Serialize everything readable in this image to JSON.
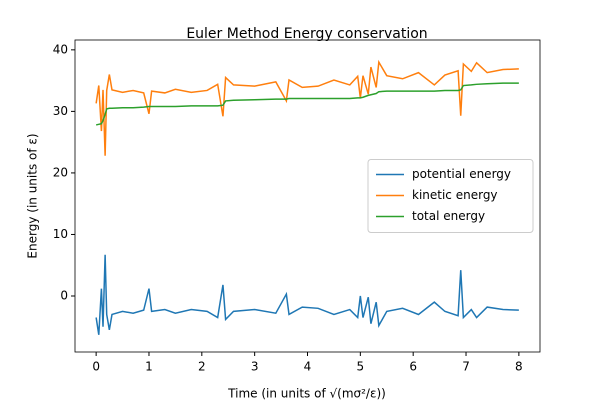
{
  "chart_data": {
    "type": "line",
    "title": "Euler Method Energy conservation",
    "x_label": "Time (in units of √(mσ²/ε))",
    "y_label": "Energy (in units of ε)",
    "x": [
      0,
      0.05,
      0.1,
      0.13,
      0.17,
      0.2,
      0.25,
      0.3,
      0.5,
      0.7,
      0.9,
      1.0,
      1.05,
      1.3,
      1.5,
      1.8,
      2.1,
      2.3,
      2.4,
      2.45,
      2.6,
      3.0,
      3.4,
      3.6,
      3.65,
      3.9,
      4.2,
      4.5,
      4.8,
      4.95,
      5.0,
      5.05,
      5.15,
      5.2,
      5.3,
      5.35,
      5.5,
      5.8,
      6.1,
      6.4,
      6.6,
      6.85,
      6.9,
      6.95,
      7.1,
      7.2,
      7.4,
      7.7,
      8.0
    ],
    "series": [
      {
        "name": "potential energy",
        "color": "#1f77b4",
        "values": [
          -3.5,
          -6.3,
          1.2,
          -5,
          6.7,
          -3,
          -5.5,
          -3,
          -2.5,
          -2.8,
          -2.3,
          1.2,
          -2.5,
          -2.2,
          -2.8,
          -2.2,
          -2.5,
          -3.5,
          1.8,
          -3.8,
          -2.5,
          -2.2,
          -2.8,
          0.3,
          -3,
          -1.8,
          -2,
          -3,
          -2.2,
          -3.5,
          0,
          -3.5,
          -0.2,
          -4.5,
          -1,
          -4.8,
          -2.5,
          -2,
          -3,
          -1,
          -2.5,
          -3.2,
          4.2,
          -3.5,
          -2.2,
          -3.5,
          -1.8,
          -2.2,
          -2.3
        ]
      },
      {
        "name": "kinetic energy",
        "color": "#ff7f0e",
        "values": [
          31.3,
          34.2,
          26.8,
          33.5,
          22.8,
          33.4,
          36,
          33.5,
          33.1,
          33.4,
          33.0,
          29.6,
          33.3,
          33.0,
          33.6,
          33.1,
          33.4,
          34.4,
          29.2,
          35.5,
          34.3,
          34.1,
          34.8,
          31.7,
          35.1,
          33.9,
          34.1,
          35.1,
          34.3,
          35.7,
          32.2,
          35.8,
          32.8,
          37.2,
          33.9,
          38,
          35.8,
          35.3,
          36.3,
          34.3,
          35.9,
          36.6,
          29.3,
          37.7,
          36.5,
          37.9,
          36.3,
          36.8,
          36.9
        ]
      },
      {
        "name": "total energy",
        "color": "#2ca02c",
        "values": [
          27.8,
          27.9,
          28.0,
          28.5,
          29.5,
          30.4,
          30.5,
          30.5,
          30.6,
          30.6,
          30.7,
          30.8,
          30.8,
          30.8,
          30.8,
          30.9,
          30.9,
          30.9,
          31.0,
          31.7,
          31.8,
          31.9,
          32.0,
          32.0,
          32.1,
          32.1,
          32.1,
          32.1,
          32.1,
          32.2,
          32.2,
          32.3,
          32.6,
          32.7,
          32.9,
          33.2,
          33.3,
          33.3,
          33.3,
          33.3,
          33.4,
          33.4,
          33.5,
          34.2,
          34.3,
          34.4,
          34.5,
          34.6,
          34.6
        ]
      }
    ],
    "xlim": [
      -0.4,
      8.4
    ],
    "xticks": [
      0,
      1,
      2,
      3,
      4,
      5,
      6,
      7,
      8
    ],
    "ylim": [
      -9.1,
      41.6
    ],
    "yticks": [
      0,
      10,
      20,
      30,
      40
    ],
    "grid": false,
    "legend": "center right"
  }
}
